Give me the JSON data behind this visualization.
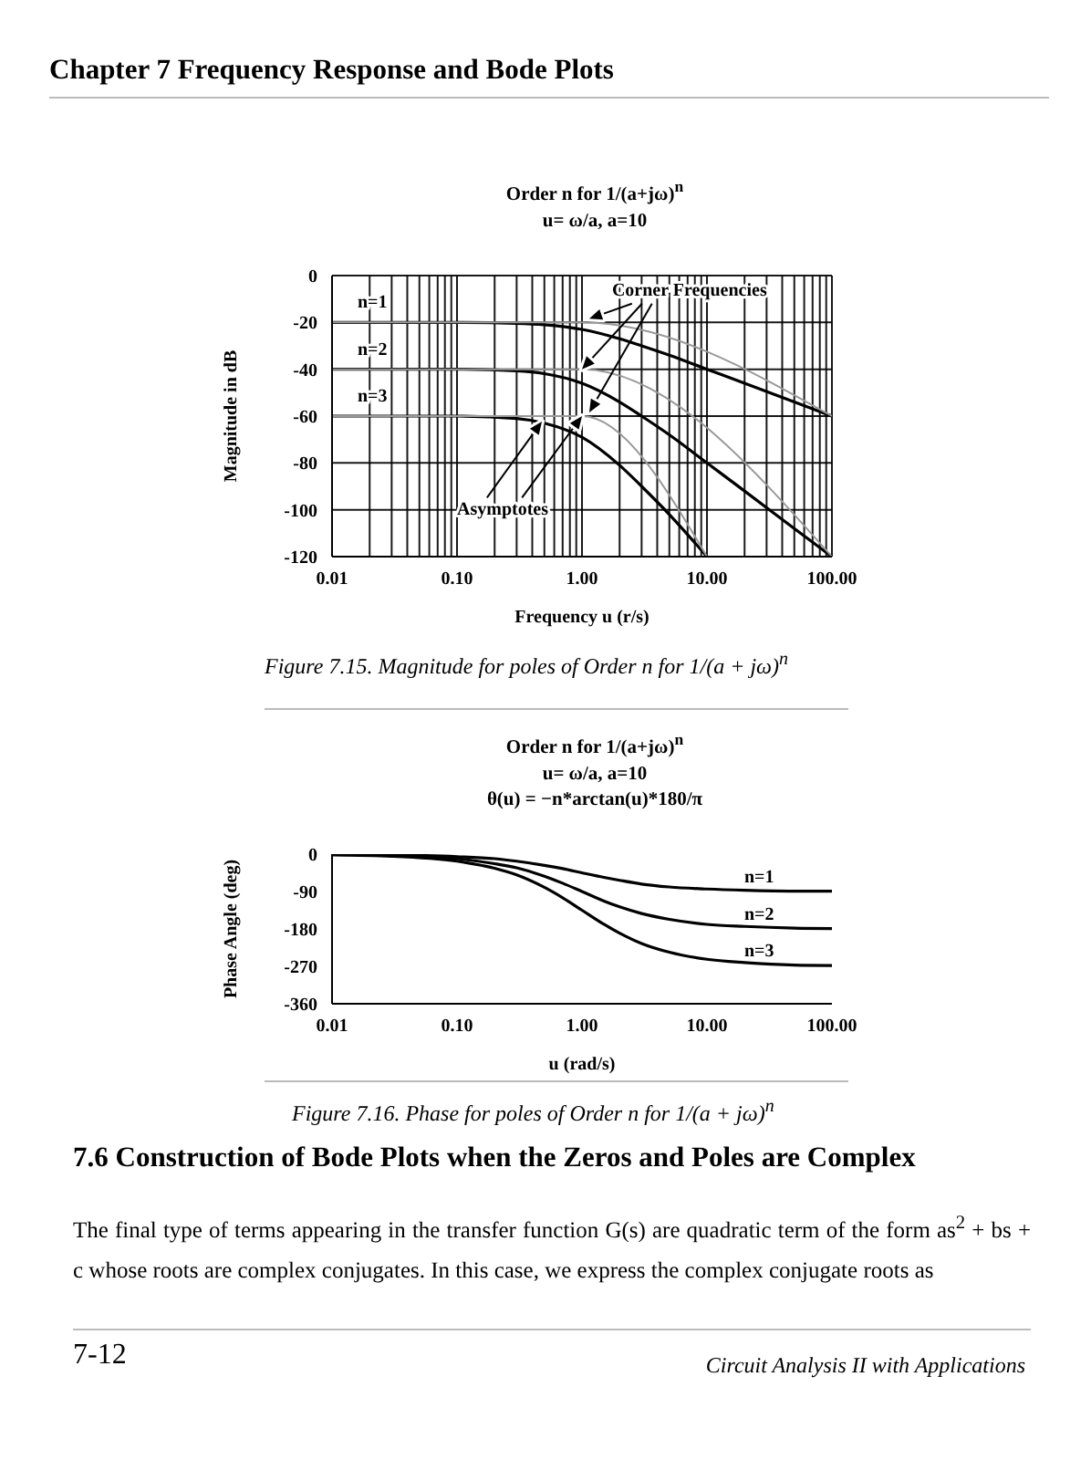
{
  "chart_data": [
    {
      "type": "line",
      "title": "Order n for 1/(a+jω)$^{n}$",
      "subtitle": "u= ω/a, a=10",
      "xlabel": "Frequency  u (r/s)",
      "ylabel": "Magnitude in dB",
      "log": "x",
      "grid": true,
      "marker": "none",
      "line_style": "solid",
      "x": [
        0.01,
        0.1,
        0.3,
        0.5,
        1,
        2,
        3,
        5,
        10,
        20,
        50,
        100
      ],
      "xlim": [
        0.01,
        100
      ],
      "xticks": [
        {
          "value": 0.01,
          "label": "0.01"
        },
        {
          "value": 0.02,
          "label": null
        },
        {
          "value": 0.03,
          "label": null
        },
        {
          "value": 0.04,
          "label": null
        },
        {
          "value": 0.05,
          "label": null
        },
        {
          "value": 0.06,
          "label": null
        },
        {
          "value": 0.07,
          "label": null
        },
        {
          "value": 0.08,
          "label": null
        },
        {
          "value": 0.09,
          "label": null
        },
        {
          "value": 0.1,
          "label": "0.10"
        },
        {
          "value": 0.2,
          "label": null
        },
        {
          "value": 0.3,
          "label": null
        },
        {
          "value": 0.4,
          "label": null
        },
        {
          "value": 0.5,
          "label": null
        },
        {
          "value": 0.6,
          "label": null
        },
        {
          "value": 0.7,
          "label": null
        },
        {
          "value": 0.8,
          "label": null
        },
        {
          "value": 0.9,
          "label": null
        },
        {
          "value": 1,
          "label": "1.00"
        },
        {
          "value": 2,
          "label": null
        },
        {
          "value": 3,
          "label": null
        },
        {
          "value": 4,
          "label": null
        },
        {
          "value": 5,
          "label": null
        },
        {
          "value": 6,
          "label": null
        },
        {
          "value": 7,
          "label": null
        },
        {
          "value": 8,
          "label": null
        },
        {
          "value": 9,
          "label": null
        },
        {
          "value": 10,
          "label": "10.00"
        },
        {
          "value": 20,
          "label": null
        },
        {
          "value": 30,
          "label": null
        },
        {
          "value": 40,
          "label": null
        },
        {
          "value": 50,
          "label": null
        },
        {
          "value": 60,
          "label": null
        },
        {
          "value": 70,
          "label": null
        },
        {
          "value": 80,
          "label": null
        },
        {
          "value": 90,
          "label": null
        },
        {
          "value": 100,
          "label": "100.00"
        }
      ],
      "ylim": [
        -120,
        0
      ],
      "yticks": [
        -120,
        -100,
        -80,
        -60,
        -40,
        -20,
        0
      ],
      "series": [
        {
          "name": "n=1",
          "color": "#000000",
          "values": [
            -20,
            -20,
            -20.4,
            -21,
            -23,
            -27,
            -30,
            -34,
            -40,
            -46,
            -54,
            -60
          ]
        },
        {
          "name": "n=2",
          "color": "#000000",
          "values": [
            -40,
            -40,
            -40.7,
            -41.9,
            -46,
            -54,
            -60,
            -68,
            -80,
            -92,
            -108,
            -120
          ]
        },
        {
          "name": "n=3",
          "color": "#000000",
          "values": [
            -60,
            -60,
            -61,
            -63,
            -69,
            -81,
            -90,
            -102,
            -120,
            null,
            null,
            null
          ]
        },
        {
          "color": "#999999",
          "x": [
            0.01,
            1,
            100
          ],
          "values": [
            -20,
            -20,
            -60
          ]
        },
        {
          "color": "#999999",
          "x": [
            0.01,
            1,
            100
          ],
          "values": [
            -40,
            -40,
            -120
          ]
        },
        {
          "color": "#999999",
          "x": [
            0.01,
            1,
            10
          ],
          "values": [
            -60,
            -60,
            -120
          ]
        }
      ],
      "annotations": [
        "Chapter 7  Frequency Response and Bode Plots",
        {
          "text": "Corner Frequencies",
          "x": 1,
          "y": -40
        },
        {
          "text": "Asymptotes",
          "x": 1,
          "y": -60
        },
        "Figure 7.15.  Magnitude for poles of Order n for 1/(a + jω)$^{n}$"
      ]
    },
    {
      "type": "line",
      "title": "Order n for 1/(a+jω)$^{n}$",
      "subtitle": "u= ω/a, a=10\nθ(u) = −n*arctan(u)*180/π",
      "xlabel": "u (rad/s)",
      "ylabel": "Phase Angle (deg)",
      "log": "x",
      "marker": "none",
      "line_style": "solid",
      "x": [
        0.01,
        0.03,
        0.1,
        0.2,
        0.3,
        0.5,
        0.7,
        1,
        1.5,
        2,
        3,
        5,
        10,
        20,
        50,
        100
      ],
      "xlim": [
        0.01,
        100
      ],
      "xticks": [
        {
          "value": 0.01,
          "label": "0.01"
        },
        {
          "value": 0.1,
          "label": "0.10"
        },
        {
          "value": 1,
          "label": "1.00"
        },
        {
          "value": 10,
          "label": "10.00"
        },
        {
          "value": 100,
          "label": "100.00"
        }
      ],
      "ylim": [
        -360,
        0
      ],
      "yticks": [
        -360,
        -270,
        -180,
        -90,
        0
      ],
      "series": [
        {
          "name": "n=1",
          "color": "#000000",
          "values": [
            -1,
            -2,
            -6,
            -11,
            -17,
            -27,
            -35,
            -45,
            -56,
            -63,
            -72,
            -79,
            -84,
            -87,
            -89,
            -89
          ]
        },
        {
          "name": "n=2",
          "color": "#000000",
          "values": [
            -1,
            -3,
            -11,
            -23,
            -33,
            -53,
            -70,
            -90,
            -113,
            -127,
            -143,
            -157,
            -169,
            -174,
            -178,
            -179
          ]
        },
        {
          "name": "n=3",
          "color": "#000000",
          "values": [
            -2,
            -5,
            -17,
            -34,
            -50,
            -80,
            -105,
            -135,
            -169,
            -190,
            -215,
            -236,
            -253,
            -261,
            -267,
            -268
          ]
        }
      ],
      "annotations": [
        "Figure 7.16.  Phase for poles of Order n for 1/(a + jω)$^{n}$",
        "7.6  Construction of Bode Plots when the Zeros and Poles are Complex",
        "The final type of terms appearing in the transfer function G(s) are quadratic term of the form as$^{2}$ + bs + c whose roots are complex conjugates. In this case, we express the complex conjugate roots as",
        "7-12",
        "Circuit Analysis II with Applications"
      ]
    }
  ]
}
